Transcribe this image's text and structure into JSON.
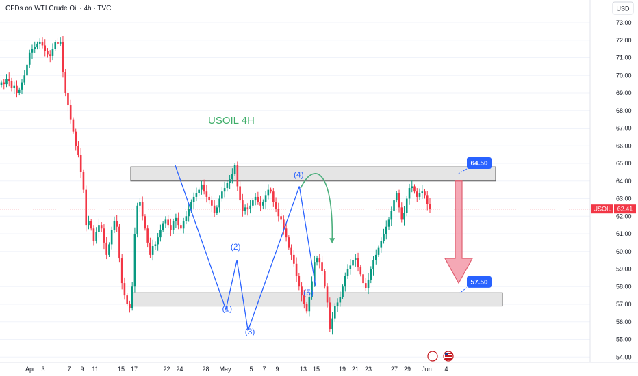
{
  "header": {
    "title": "CFDs on WTI Crude Oil · 4h · TVC",
    "currency_badge": "USD"
  },
  "chart_data": {
    "type": "candlestick",
    "symbol": "USOIL",
    "annotation_title": "USOIL 4H",
    "last_price": "62.41",
    "ylim": [
      54.0,
      73.0
    ],
    "y_ticks": [
      "73.00",
      "72.00",
      "71.00",
      "70.00",
      "69.00",
      "68.00",
      "67.00",
      "66.00",
      "65.00",
      "64.00",
      "63.00",
      "62.00",
      "61.00",
      "60.00",
      "59.00",
      "58.00",
      "57.00",
      "56.00",
      "55.00",
      "54.00"
    ],
    "x_ticks": [
      {
        "label": "28",
        "day": -4
      },
      {
        "label": "Apr",
        "day": 1
      },
      {
        "label": "3",
        "day": 3
      },
      {
        "label": "7",
        "day": 7
      },
      {
        "label": "9",
        "day": 9
      },
      {
        "label": "11",
        "day": 11
      },
      {
        "label": "15",
        "day": 15
      },
      {
        "label": "17",
        "day": 17
      },
      {
        "label": "22",
        "day": 22
      },
      {
        "label": "24",
        "day": 24
      },
      {
        "label": "28",
        "day": 28
      },
      {
        "label": "May",
        "day": 31
      },
      {
        "label": "5",
        "day": 35
      },
      {
        "label": "7",
        "day": 37
      },
      {
        "label": "9",
        "day": 39
      },
      {
        "label": "13",
        "day": 43
      },
      {
        "label": "15",
        "day": 45
      },
      {
        "label": "19",
        "day": 49
      },
      {
        "label": "21",
        "day": 51
      },
      {
        "label": "23",
        "day": 53
      },
      {
        "label": "27",
        "day": 57
      },
      {
        "label": "29",
        "day": 59
      },
      {
        "label": "Jun",
        "day": 62
      },
      {
        "label": "4",
        "day": 65
      }
    ],
    "resistance_zone": {
      "low": 64.0,
      "high": 64.8,
      "label": "64.50"
    },
    "support_zone": {
      "low": 56.9,
      "high": 57.65,
      "label": "57.50"
    },
    "wave_labels": [
      {
        "label": "(1)",
        "day": 31.3,
        "price": 56.6
      },
      {
        "label": "(2)",
        "day": 32.6,
        "price": 60.1
      },
      {
        "label": "(3)",
        "day": 34.8,
        "price": 55.3
      },
      {
        "label": "(4)",
        "day": 42.3,
        "price": 64.2
      },
      {
        "label": "(5)",
        "day": 43.8,
        "price": 57.5
      }
    ],
    "wave_lines": [
      [
        [
          23.3,
          64.9
        ],
        [
          31.1,
          56.7
        ]
      ],
      [
        [
          31.1,
          56.7
        ],
        [
          32.8,
          59.5
        ]
      ],
      [
        [
          32.8,
          59.5
        ],
        [
          34.5,
          55.5
        ]
      ],
      [
        [
          34.5,
          55.5
        ],
        [
          42.4,
          63.7
        ]
      ],
      [
        [
          42.4,
          63.7
        ],
        [
          44.9,
          58.0
        ]
      ]
    ],
    "closes": [
      69.6,
      69.5,
      69.8,
      69.7,
      69.3,
      69.4,
      69.0,
      69.2,
      69.6,
      70.0,
      70.6,
      71.3,
      71.5,
      71.6,
      71.8,
      71.9,
      71.7,
      71.4,
      71.2,
      71.1,
      71.5,
      71.9,
      71.8,
      71.9,
      70.2,
      69.0,
      68.3,
      67.5,
      66.8,
      66.0,
      65.5,
      64.5,
      63.5,
      61.5,
      61.7,
      61.3,
      60.6,
      61.1,
      61.5,
      61.3,
      60.5,
      59.8,
      60.4,
      61.2,
      61.7,
      61.4,
      59.6,
      58.2,
      57.5,
      57.0,
      56.8,
      58.0,
      61.0,
      62.6,
      62.8,
      62.0,
      61.3,
      60.5,
      59.8,
      60.3,
      60.4,
      60.8,
      61.2,
      61.6,
      61.8,
      61.5,
      61.2,
      61.7,
      61.9,
      61.5,
      61.3,
      61.7,
      62.0,
      62.4,
      62.8,
      63.1,
      63.3,
      63.5,
      63.8,
      63.4,
      63.1,
      62.9,
      62.6,
      62.2,
      62.5,
      63.0,
      63.4,
      63.6,
      63.9,
      64.1,
      64.4,
      64.9,
      63.7,
      62.9,
      62.3,
      62.5,
      62.4,
      62.6,
      62.9,
      63.1,
      62.8,
      62.6,
      62.8,
      63.2,
      63.5,
      63.4,
      62.8,
      62.4,
      62.0,
      61.8,
      61.3,
      60.8,
      60.2,
      59.8,
      59.3,
      58.6,
      58.0,
      57.5,
      57.0,
      56.6,
      57.4,
      58.3,
      59.4,
      59.6,
      59.4,
      58.9,
      58.0,
      57.1,
      55.6,
      56.2,
      56.9,
      57.1,
      57.4,
      58.0,
      58.6,
      59.0,
      59.2,
      59.5,
      59.6,
      59.1,
      58.7,
      58.2,
      57.9,
      58.4,
      59.0,
      59.5,
      59.8,
      60.2,
      60.6,
      61.0,
      61.4,
      61.8,
      62.3,
      62.9,
      63.3,
      62.5,
      61.8,
      62.2,
      63.0,
      63.6,
      63.7,
      63.4,
      63.1,
      63.3,
      63.4,
      63.2,
      62.7,
      62.41
    ]
  },
  "colors": {
    "up": "#089981",
    "down": "#f23645",
    "wave": "#2962ff",
    "badge": "#2962ff",
    "price_badge": "#f23645",
    "arrow_green": "#4caf7d",
    "arrow_red": "#f28b9c",
    "title_green": "#3fae6a"
  }
}
